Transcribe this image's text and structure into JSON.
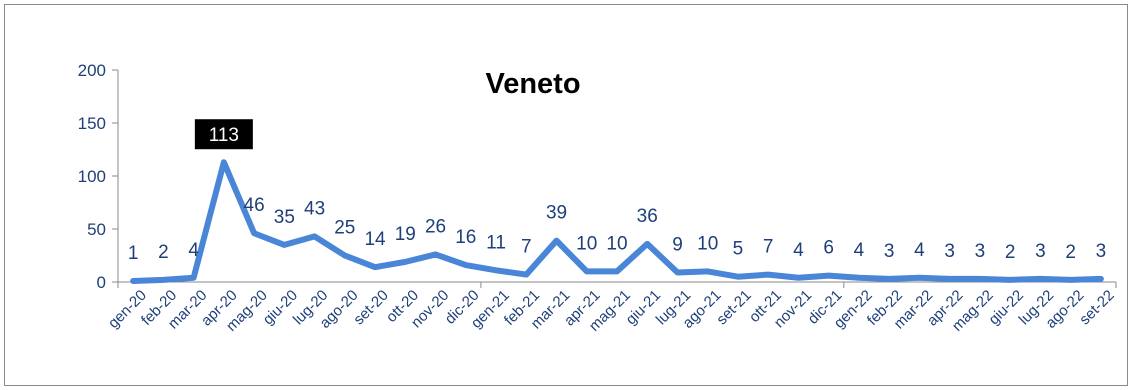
{
  "chart_data": {
    "type": "line",
    "title": "Veneto",
    "xlabel": "",
    "ylabel": "",
    "ylim": [
      0,
      200
    ],
    "yticks": [
      0,
      50,
      100,
      150,
      200
    ],
    "grid": false,
    "legend": "none",
    "line_color": "#4a86d8",
    "categories": [
      "gen-20",
      "feb-20",
      "mar-20",
      "apr-20",
      "mag-20",
      "giu-20",
      "lug-20",
      "ago-20",
      "set-20",
      "ott-20",
      "nov-20",
      "dic-20",
      "gen-21",
      "feb-21",
      "mar-21",
      "apr-21",
      "mag-21",
      "giu-21",
      "lug-21",
      "ago-21",
      "set-21",
      "ott-21",
      "nov-21",
      "dic-21",
      "gen-22",
      "feb-22",
      "mar-22",
      "apr-22",
      "mag-22",
      "giu-22",
      "lug-22",
      "ago-22",
      "set-22"
    ],
    "values": [
      1,
      2,
      4,
      113,
      46,
      35,
      43,
      25,
      14,
      19,
      26,
      16,
      11,
      7,
      39,
      10,
      10,
      36,
      9,
      10,
      5,
      7,
      4,
      6,
      4,
      3,
      4,
      3,
      3,
      2,
      3,
      2,
      3
    ],
    "highlight_index": 3,
    "highlight_color": "#000000"
  }
}
